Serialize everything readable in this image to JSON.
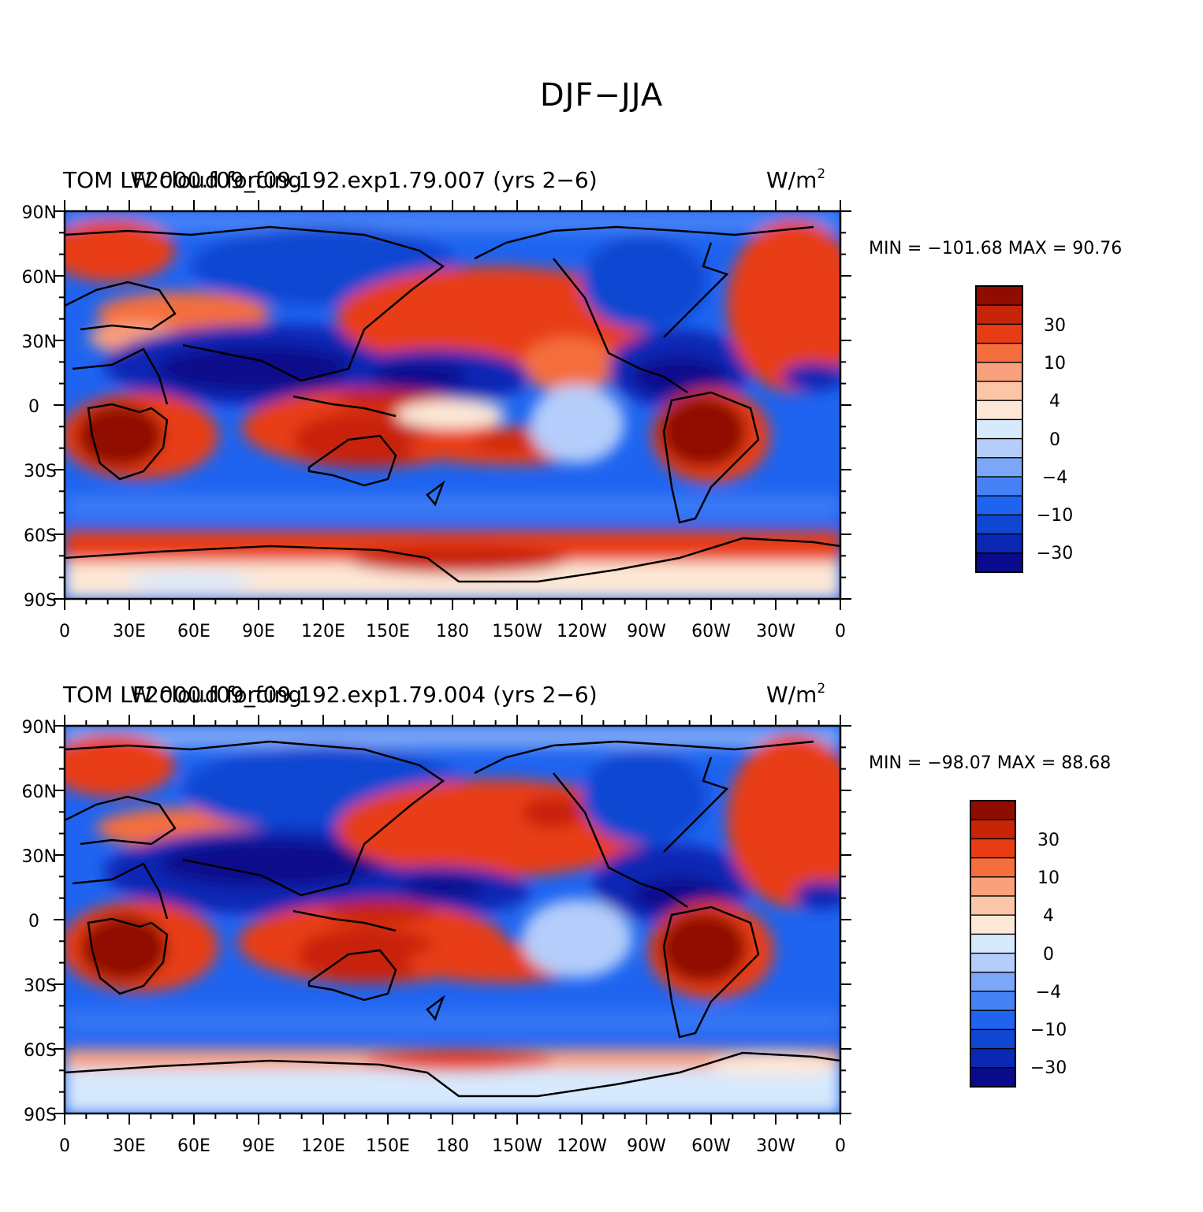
{
  "figure": {
    "title": "DJF−JJA"
  },
  "axes": {
    "lat_ticks": [
      "90N",
      "60N",
      "30N",
      "0",
      "30S",
      "60S",
      "90S"
    ],
    "lon_ticks": [
      "0",
      "30E",
      "60E",
      "90E",
      "120E",
      "150E",
      "180",
      "150W",
      "120W",
      "90W",
      "60W",
      "30W",
      "0"
    ]
  },
  "colors": {
    "levels": [
      "#0a0a8c",
      "#0a28b4",
      "#0f46d2",
      "#1e64f0",
      "#4682f5",
      "#7ca6f7",
      "#b4cdfa",
      "#d7e9fd",
      "#fde8d7",
      "#fbc6a8",
      "#f9a07c",
      "#f46e3e",
      "#e83c14",
      "#c82408",
      "#900c00"
    ],
    "coast": "#000000"
  },
  "colorbar": {
    "labels": [
      "30",
      "10",
      "4",
      "0",
      "−4",
      "−10",
      "−30"
    ],
    "label_levels": [
      30,
      10,
      4,
      0,
      -4,
      -10,
      -30
    ]
  },
  "panels": [
    {
      "title_left": "TOM LW cloud forcing",
      "title_center": "F2000.f09_f09.192.exp1.79.007 (yrs 2−6)",
      "units": "W/m",
      "units_sup": "2",
      "stats": "MIN = −101.68  MAX =  90.76",
      "min": -101.68,
      "max": 90.76
    },
    {
      "title_left": "TOM LW cloud forcing",
      "title_center": "F2000.f09_f09.192.exp1.79.004 (yrs 2−6)",
      "units": "W/m",
      "units_sup": "2",
      "stats": "MIN = −98.07  MAX =  88.68",
      "min": -98.07,
      "max": 88.68
    }
  ]
}
